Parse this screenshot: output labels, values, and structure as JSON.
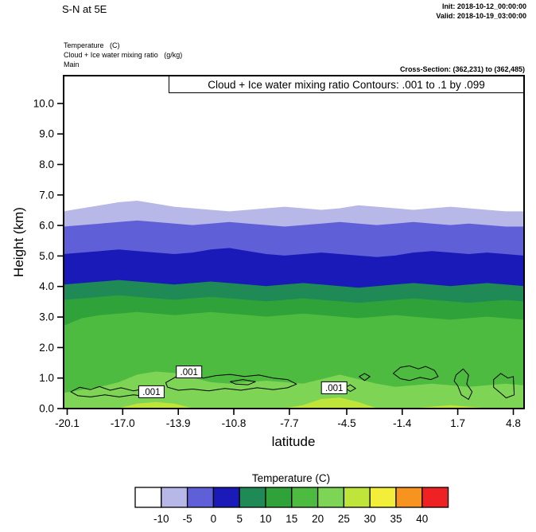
{
  "header": {
    "title": "S-N at 5E",
    "init": "Init: 2018-10-12_00:00:00",
    "valid": "Valid: 2018-10-19_03:00:00",
    "fields": {
      "line1": "Temperature   (C)",
      "line2": "Cloud + Ice water mixing ratio   (g/kg)",
      "line3": "Main"
    },
    "cross_section": "Cross-Section: (362,231) to (362,485)"
  },
  "chart_data": {
    "type": "contour",
    "title": "Cloud + Ice water mixing ratio Contours: .001 to .1 by .099",
    "xlabel": "latitude",
    "ylabel": "Height (km)",
    "xlim": [
      -20.3,
      5.4
    ],
    "ylim": [
      0,
      10.91
    ],
    "grid": false,
    "x_ticks": [
      -20.1,
      -17.0,
      -13.9,
      -10.8,
      -7.7,
      -4.5,
      -1.4,
      1.7,
      4.8
    ],
    "y_ticks": [
      0,
      1,
      2,
      3,
      4,
      5,
      6,
      7,
      8,
      9,
      10
    ],
    "lat_samples": [
      -20.3,
      -19.27,
      -18.24,
      -17.22,
      -16.19,
      -15.16,
      -14.13,
      -13.1,
      -12.08,
      -11.05,
      -10.02,
      -8.99,
      -7.96,
      -6.94,
      -5.91,
      -4.88,
      -3.85,
      -2.82,
      -1.8,
      -0.77,
      0.26,
      1.29,
      2.31,
      3.34,
      4.37,
      5.4
    ],
    "temperature_fill": {
      "units": "C",
      "background_color": "#ffffff",
      "bands": [
        {
          "level_min": -10,
          "level_max": -5,
          "color": "#b7b7e8",
          "top_height_km": [
            6.45,
            6.55,
            6.65,
            6.75,
            6.8,
            6.7,
            6.6,
            6.55,
            6.5,
            6.45,
            6.5,
            6.55,
            6.6,
            6.55,
            6.5,
            6.55,
            6.65,
            6.6,
            6.55,
            6.5,
            6.55,
            6.6,
            6.55,
            6.5,
            6.45,
            6.45
          ]
        },
        {
          "level_min": -5,
          "level_max": 0,
          "color": "#5f5fd8",
          "top_height_km": [
            5.95,
            6.0,
            6.05,
            6.1,
            6.15,
            6.1,
            6.05,
            6.0,
            6.05,
            6.1,
            6.05,
            6.0,
            5.95,
            6.0,
            6.05,
            6.1,
            6.05,
            6.0,
            6.05,
            6.1,
            6.05,
            6.0,
            6.05,
            6.0,
            5.95,
            5.95
          ]
        },
        {
          "level_min": 0,
          "level_max": 5,
          "color": "#1a1ab8",
          "top_height_km": [
            5.05,
            5.1,
            5.15,
            5.2,
            5.15,
            5.1,
            5.05,
            5.1,
            5.2,
            5.25,
            5.15,
            5.05,
            5.0,
            5.05,
            5.1,
            5.05,
            5.0,
            4.95,
            5.0,
            5.1,
            5.15,
            5.1,
            5.05,
            5.1,
            5.05,
            5.0
          ]
        },
        {
          "level_min": 5,
          "level_max": 10,
          "color": "#1f8a55",
          "top_height_km": [
            4.05,
            4.1,
            4.15,
            4.2,
            4.15,
            4.1,
            4.05,
            4.1,
            4.15,
            4.1,
            4.05,
            4.0,
            4.05,
            4.1,
            4.05,
            4.0,
            3.95,
            4.0,
            4.05,
            4.1,
            4.05,
            4.0,
            4.05,
            4.1,
            4.05,
            4.0
          ]
        },
        {
          "level_min": 10,
          "level_max": 15,
          "color": "#2fa33a",
          "top_height_km": [
            3.55,
            3.6,
            3.65,
            3.7,
            3.65,
            3.6,
            3.55,
            3.6,
            3.65,
            3.6,
            3.55,
            3.5,
            3.55,
            3.6,
            3.55,
            3.5,
            3.45,
            3.5,
            3.55,
            3.6,
            3.55,
            3.5,
            3.45,
            3.5,
            3.55,
            3.5
          ]
        },
        {
          "level_min": 15,
          "level_max": 20,
          "color": "#4cbb3f",
          "top_height_km": [
            2.7,
            2.95,
            3.05,
            3.1,
            3.15,
            3.1,
            3.05,
            3.1,
            3.15,
            3.1,
            3.05,
            3.0,
            3.05,
            3.1,
            3.05,
            3.0,
            2.95,
            3.0,
            3.05,
            3.0,
            2.95,
            2.9,
            2.95,
            3.0,
            2.95,
            2.9
          ]
        },
        {
          "level_min": 20,
          "level_max": 25,
          "color": "#7ed455",
          "top_height_km": [
            0.5,
            0.6,
            0.7,
            0.85,
            1.1,
            1.2,
            1.15,
            1.0,
            0.85,
            0.8,
            0.85,
            0.9,
            0.85,
            0.8,
            0.95,
            1.1,
            0.95,
            0.8,
            0.7,
            0.75,
            0.8,
            0.75,
            0.7,
            0.75,
            0.8,
            0.75
          ]
        },
        {
          "level_min": 25,
          "level_max": 30,
          "color": "#bfe43a",
          "top_height_km": [
            0,
            0,
            0,
            0,
            0.15,
            0.2,
            0.15,
            0,
            0,
            0,
            0,
            0,
            0,
            0.1,
            0.3,
            0.35,
            0.2,
            0,
            0,
            0,
            0.05,
            0.1,
            0.05,
            0,
            0,
            0
          ]
        }
      ]
    },
    "cloud_contours": {
      "units": "g/kg",
      "levels": [
        0.001,
        0.1
      ],
      "loops": [
        {
          "points": [
            [
              -19.9,
              0.55
            ],
            [
              -19.4,
              0.7
            ],
            [
              -18.8,
              0.62
            ],
            [
              -18.3,
              0.72
            ],
            [
              -17.7,
              0.6
            ],
            [
              -17.1,
              0.68
            ],
            [
              -16.4,
              0.58
            ],
            [
              -15.8,
              0.65
            ],
            [
              -15.3,
              0.52
            ],
            [
              -15.7,
              0.4
            ],
            [
              -16.4,
              0.45
            ],
            [
              -17.2,
              0.38
            ],
            [
              -18.0,
              0.45
            ],
            [
              -18.8,
              0.38
            ],
            [
              -19.5,
              0.42
            ]
          ]
        },
        {
          "points": [
            [
              -14.6,
              0.85
            ],
            [
              -14.0,
              1.05
            ],
            [
              -13.3,
              1.1
            ],
            [
              -12.5,
              1.0
            ],
            [
              -11.8,
              1.08
            ],
            [
              -11.0,
              1.12
            ],
            [
              -10.2,
              1.05
            ],
            [
              -9.4,
              1.1
            ],
            [
              -8.6,
              1.0
            ],
            [
              -7.8,
              0.95
            ],
            [
              -7.3,
              0.8
            ],
            [
              -7.8,
              0.68
            ],
            [
              -8.6,
              0.62
            ],
            [
              -9.5,
              0.68
            ],
            [
              -10.4,
              0.6
            ],
            [
              -11.3,
              0.66
            ],
            [
              -12.2,
              0.58
            ],
            [
              -13.1,
              0.64
            ],
            [
              -13.9,
              0.6
            ],
            [
              -14.5,
              0.7
            ]
          ]
        },
        {
          "points": [
            [
              -11.0,
              0.88
            ],
            [
              -10.3,
              0.95
            ],
            [
              -9.6,
              0.88
            ],
            [
              -10.0,
              0.78
            ],
            [
              -10.7,
              0.8
            ]
          ]
        },
        {
          "points": [
            [
              -4.6,
              0.68
            ],
            [
              -4.3,
              0.78
            ],
            [
              -4.0,
              0.66
            ],
            [
              -4.3,
              0.56
            ]
          ]
        },
        {
          "points": [
            [
              -3.8,
              1.05
            ],
            [
              -3.5,
              1.15
            ],
            [
              -3.2,
              1.05
            ],
            [
              -3.5,
              0.92
            ]
          ]
        },
        {
          "points": [
            [
              -1.9,
              1.15
            ],
            [
              -1.5,
              1.35
            ],
            [
              -1.0,
              1.4
            ],
            [
              -0.5,
              1.3
            ],
            [
              -0.1,
              1.38
            ],
            [
              0.4,
              1.25
            ],
            [
              0.6,
              1.05
            ],
            [
              0.2,
              0.95
            ],
            [
              -0.4,
              1.02
            ],
            [
              -1.0,
              0.92
            ],
            [
              -1.5,
              0.98
            ]
          ]
        },
        {
          "points": [
            [
              1.6,
              1.1
            ],
            [
              2.0,
              1.3
            ],
            [
              2.3,
              1.1
            ],
            [
              2.2,
              0.8
            ],
            [
              2.5,
              0.55
            ],
            [
              2.3,
              0.3
            ],
            [
              1.9,
              0.45
            ],
            [
              1.7,
              0.75
            ],
            [
              1.5,
              0.9
            ]
          ]
        },
        {
          "points": [
            [
              3.7,
              0.95
            ],
            [
              4.1,
              1.15
            ],
            [
              4.5,
              1.0
            ],
            [
              4.8,
              1.05
            ],
            [
              4.85,
              0.45
            ],
            [
              4.4,
              0.35
            ],
            [
              4.0,
              0.55
            ],
            [
              3.7,
              0.7
            ]
          ]
        }
      ],
      "labels": [
        {
          "text": ".001",
          "lat": -15.4,
          "height_km": 0.55
        },
        {
          "text": ".001",
          "lat": -13.3,
          "height_km": 1.2
        },
        {
          "text": ".001",
          "lat": -5.2,
          "height_km": 0.68
        }
      ]
    },
    "colorbar": {
      "title": "Temperature  (C)",
      "tick_labels": [
        "-10",
        "-5",
        "0",
        "5",
        "10",
        "15",
        "20",
        "25",
        "30",
        "35",
        "40"
      ],
      "cell_colors": [
        "#ffffff",
        "#b7b7e8",
        "#5f5fd8",
        "#1a1ab8",
        "#1f8a55",
        "#2fa33a",
        "#4cbb3f",
        "#7ed455",
        "#bfe43a",
        "#f2ee3a",
        "#f79420",
        "#ee2222"
      ]
    }
  }
}
